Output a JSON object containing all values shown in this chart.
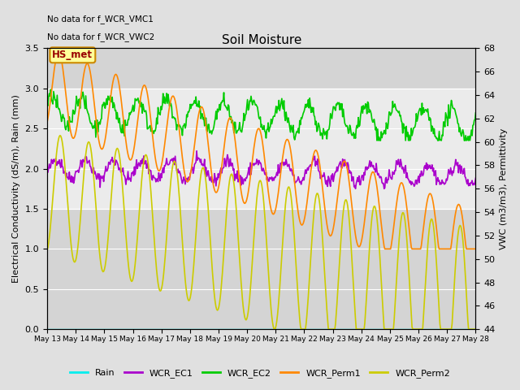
{
  "title": "Soil Moisture",
  "ylabel_left": "Electrical Conductivity (dS/m), Rain (mm)",
  "ylabel_right": "VWC (m3/m3), Permittivity",
  "annotation1": "No data for f_WCR_VMC1",
  "annotation2": "No data for f_WCR_VWC2",
  "box_label": "HS_met",
  "ylim_left": [
    0.0,
    3.5
  ],
  "ylim_right": [
    44,
    68
  ],
  "background_color": "#e8e8e8",
  "plot_bg_color": "#d8d8d8",
  "shaded_band_inner": [
    1.5,
    3.0
  ],
  "legend_entries": [
    "Rain",
    "WCR_EC1",
    "WCR_EC2",
    "WCR_Perm1",
    "WCR_Perm2"
  ],
  "legend_colors": [
    "#00eeee",
    "#aa00cc",
    "#00cc00",
    "#ff8800",
    "#cccc00"
  ],
  "num_points": 600,
  "num_days": 15
}
